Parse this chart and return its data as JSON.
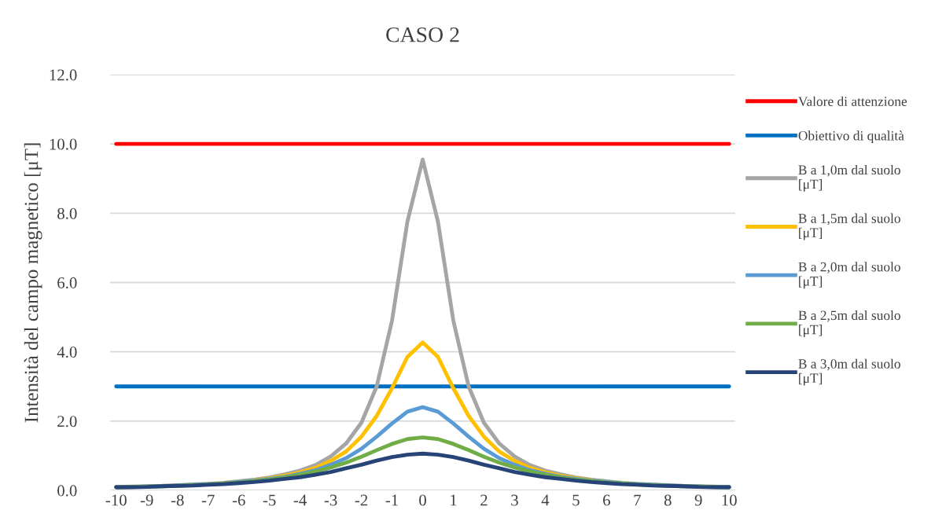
{
  "chart_data": {
    "type": "line",
    "title": "CASO 2",
    "ylabel": "Intensità del campo magnetico [μT]",
    "x": [
      -10,
      -9.5,
      -9,
      -8.5,
      -8,
      -7.5,
      -7,
      -6.5,
      -6,
      -5.5,
      -5,
      -4.5,
      -4,
      -3.5,
      -3,
      -2.5,
      -2,
      -1.5,
      -1,
      -0.5,
      0,
      0.5,
      1,
      1.5,
      2,
      2.5,
      3,
      3.5,
      4,
      4.5,
      5,
      5.5,
      6,
      6.5,
      7,
      7.5,
      8,
      8.5,
      9,
      9.5,
      10
    ],
    "series": [
      {
        "name": "Valore di attenzione",
        "color": "#ff0000",
        "values": [
          10,
          10,
          10,
          10,
          10,
          10,
          10,
          10,
          10,
          10,
          10,
          10,
          10,
          10,
          10,
          10,
          10,
          10,
          10,
          10,
          10,
          10,
          10,
          10,
          10,
          10,
          10,
          10,
          10,
          10,
          10,
          10,
          10,
          10,
          10,
          10,
          10,
          10,
          10,
          10,
          10
        ]
      },
      {
        "name": "Obiettivo di qualità",
        "color": "#0070c0",
        "values": [
          3,
          3,
          3,
          3,
          3,
          3,
          3,
          3,
          3,
          3,
          3,
          3,
          3,
          3,
          3,
          3,
          3,
          3,
          3,
          3,
          3,
          3,
          3,
          3,
          3,
          3,
          3,
          3,
          3,
          3,
          3,
          3,
          3,
          3,
          3,
          3,
          3,
          3,
          3,
          3,
          3
        ]
      },
      {
        "name": "B a 1,0m dal suolo [μT]",
        "color": "#a5a5a5",
        "values": [
          0.1,
          0.11,
          0.12,
          0.13,
          0.15,
          0.17,
          0.19,
          0.22,
          0.26,
          0.31,
          0.37,
          0.46,
          0.57,
          0.73,
          0.98,
          1.35,
          1.95,
          3.0,
          4.9,
          7.75,
          9.55,
          7.75,
          4.9,
          3.0,
          1.95,
          1.35,
          0.98,
          0.73,
          0.57,
          0.46,
          0.37,
          0.31,
          0.26,
          0.22,
          0.19,
          0.17,
          0.15,
          0.13,
          0.12,
          0.11,
          0.1
        ]
      },
      {
        "name": "B a 1,5m dal suolo [μT]",
        "color": "#ffc000",
        "values": [
          null,
          null,
          null,
          null,
          null,
          null,
          null,
          null,
          null,
          0.29,
          0.35,
          0.42,
          0.52,
          0.65,
          0.85,
          1.12,
          1.55,
          2.15,
          2.95,
          3.85,
          4.27,
          3.85,
          2.95,
          2.15,
          1.55,
          1.12,
          0.85,
          0.65,
          0.52,
          0.42,
          0.35,
          0.29,
          null,
          null,
          null,
          null,
          null,
          null,
          null,
          null,
          null
        ]
      },
      {
        "name": "B a 2,0m dal suolo [μT]",
        "color": "#5b9bd5",
        "values": [
          0.09,
          0.1,
          0.11,
          0.12,
          0.14,
          0.16,
          0.18,
          0.2,
          0.24,
          0.28,
          0.33,
          0.39,
          0.48,
          0.58,
          0.74,
          0.93,
          1.2,
          1.55,
          1.93,
          2.27,
          2.4,
          2.27,
          1.93,
          1.55,
          1.2,
          0.93,
          0.74,
          0.58,
          0.48,
          0.39,
          0.33,
          0.28,
          0.24,
          0.2,
          0.18,
          0.16,
          0.14,
          0.12,
          0.11,
          0.1,
          0.09
        ]
      },
      {
        "name": "B a 2,5m dal suolo [μT]",
        "color": "#70ad47",
        "values": [
          0.09,
          0.1,
          0.11,
          0.12,
          0.13,
          0.15,
          0.17,
          0.2,
          0.23,
          0.27,
          0.31,
          0.37,
          0.45,
          0.54,
          0.66,
          0.8,
          0.97,
          1.16,
          1.34,
          1.48,
          1.53,
          1.48,
          1.34,
          1.16,
          0.97,
          0.8,
          0.66,
          0.54,
          0.45,
          0.37,
          0.31,
          0.27,
          0.23,
          0.2,
          0.17,
          0.15,
          0.13,
          0.12,
          0.11,
          0.1,
          0.09
        ]
      },
      {
        "name": "B a 3,0m dal suolo [μT]",
        "color": "#264478",
        "values": [
          0.09,
          0.09,
          0.1,
          0.12,
          0.13,
          0.14,
          0.16,
          0.18,
          0.21,
          0.24,
          0.28,
          0.33,
          0.38,
          0.45,
          0.53,
          0.64,
          0.74,
          0.86,
          0.96,
          1.03,
          1.06,
          1.03,
          0.96,
          0.86,
          0.74,
          0.64,
          0.53,
          0.45,
          0.38,
          0.33,
          0.28,
          0.24,
          0.21,
          0.18,
          0.16,
          0.14,
          0.13,
          0.12,
          0.1,
          0.09,
          0.09
        ]
      }
    ],
    "xlim": [
      -10.2,
      10.2
    ],
    "xticks": [
      -10,
      -9,
      -8,
      -7,
      -6,
      -5,
      -4,
      -3,
      -2,
      -1,
      0,
      1,
      2,
      3,
      4,
      5,
      6,
      7,
      8,
      9,
      10
    ],
    "ylim": [
      0,
      12
    ],
    "yticks": [
      {
        "value": 0,
        "label": "0.0"
      },
      {
        "value": 2,
        "label": "2.0"
      },
      {
        "value": 4,
        "label": "4.0"
      },
      {
        "value": 6,
        "label": "6.0"
      },
      {
        "value": 8,
        "label": "8.0"
      },
      {
        "value": 10,
        "label": "10.0"
      },
      {
        "value": 12,
        "label": "12.0"
      }
    ],
    "grid": "y",
    "legend": "right",
    "marker": "none",
    "line_style": "solid"
  }
}
